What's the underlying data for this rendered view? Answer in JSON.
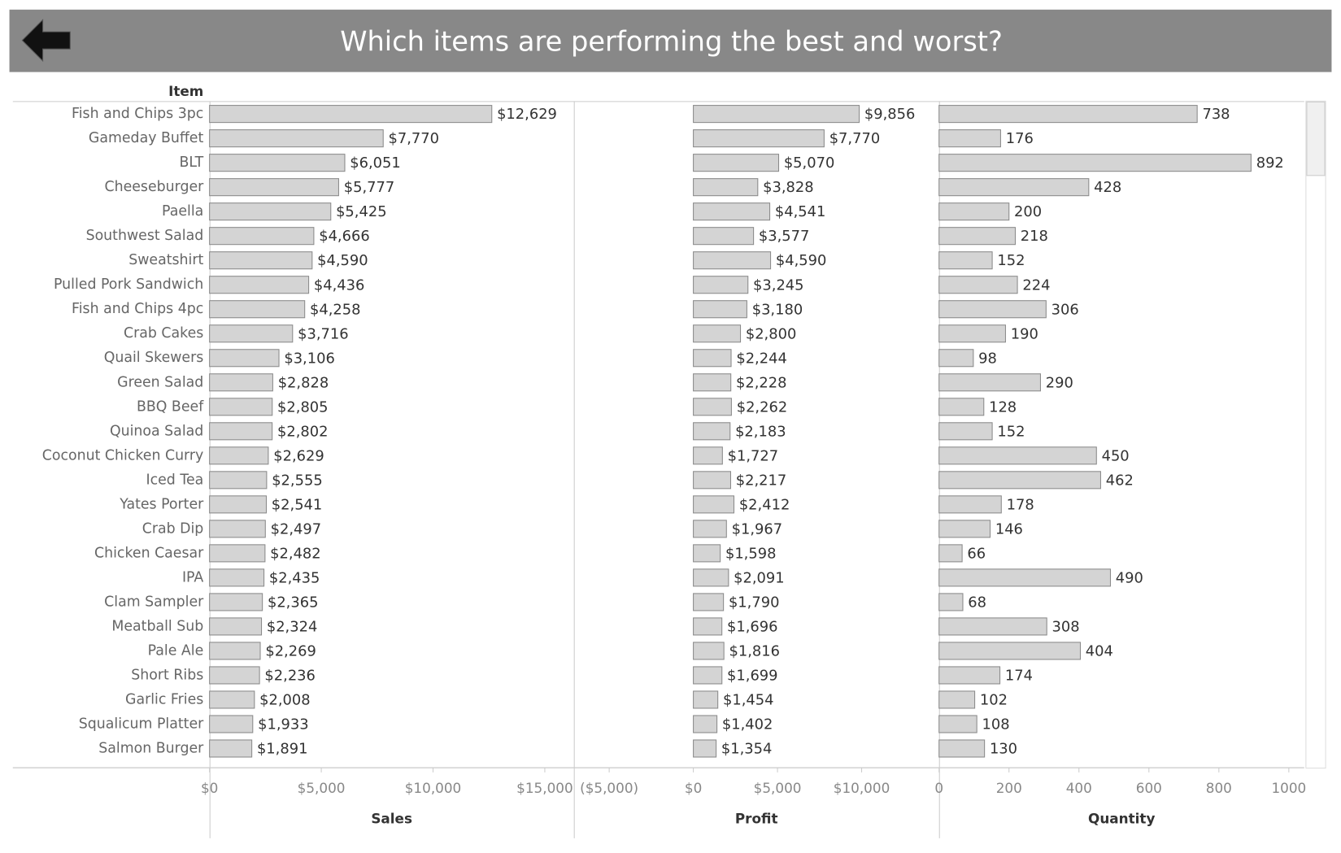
{
  "chart_data": {
    "type": "bar",
    "title": "Which items are performing the best and worst?",
    "y_label": "Item",
    "categories": [
      "Fish and Chips 3pc",
      "Gameday Buffet",
      "BLT",
      "Cheeseburger",
      "Paella",
      "Southwest Salad",
      "Sweatshirt",
      "Pulled Pork Sandwich",
      "Fish and Chips 4pc",
      "Crab Cakes",
      "Quail Skewers",
      "Green Salad",
      "BBQ Beef",
      "Quinoa Salad",
      "Coconut Chicken Curry",
      "Iced Tea",
      "Yates Porter",
      "Crab Dip",
      "Chicken Caesar",
      "IPA",
      "Clam Sampler",
      "Meatball Sub",
      "Pale Ale",
      "Short Ribs",
      "Garlic Fries",
      "Squalicum Platter",
      "Salmon Burger"
    ],
    "series": [
      {
        "name": "Sales",
        "color": "#d4d4d4",
        "values": [
          12629,
          7770,
          6051,
          5777,
          5425,
          4666,
          4590,
          4436,
          4258,
          3716,
          3106,
          2828,
          2805,
          2802,
          2629,
          2555,
          2541,
          2497,
          2482,
          2435,
          2365,
          2324,
          2269,
          2236,
          2008,
          1933,
          1891
        ],
        "value_labels": [
          "$12,629",
          "$7,770",
          "$6,051",
          "$5,777",
          "$5,425",
          "$4,666",
          "$4,590",
          "$4,436",
          "$4,258",
          "$3,716",
          "$3,106",
          "$2,828",
          "$2,805",
          "$2,802",
          "$2,629",
          "$2,555",
          "$2,541",
          "$2,497",
          "$2,482",
          "$2,435",
          "$2,365",
          "$2,324",
          "$2,269",
          "$2,236",
          "$2,008",
          "$1,933",
          "$1,891"
        ],
        "xlim": [
          0,
          16300
        ],
        "xticks": [
          {
            "value": 0,
            "label": "$0"
          },
          {
            "value": 5000,
            "label": "$5,000"
          },
          {
            "value": 10000,
            "label": "$10,000"
          },
          {
            "value": 15000,
            "label": "$15,000"
          }
        ]
      },
      {
        "name": "Profit",
        "color": "#d4d4d4",
        "values": [
          9856,
          7770,
          5070,
          3828,
          4541,
          3577,
          4590,
          3245,
          3180,
          2800,
          2244,
          2228,
          2262,
          2183,
          1727,
          2217,
          2412,
          1967,
          1598,
          2091,
          1790,
          1696,
          1816,
          1699,
          1454,
          1402,
          1354
        ],
        "value_labels": [
          "$9,856",
          "$7,770",
          "$5,070",
          "$3,828",
          "$4,541",
          "$3,577",
          "$4,590",
          "$3,245",
          "$3,180",
          "$2,800",
          "$2,244",
          "$2,228",
          "$2,262",
          "$2,183",
          "$1,727",
          "$2,217",
          "$2,412",
          "$1,967",
          "$1,598",
          "$2,091",
          "$1,790",
          "$1,696",
          "$1,816",
          "$1,699",
          "$1,454",
          "$1,402",
          "$1,354"
        ],
        "xlim": [
          -7100,
          14600
        ],
        "xticks": [
          {
            "value": -5000,
            "label": "($5,000)"
          },
          {
            "value": 0,
            "label": "$0"
          },
          {
            "value": 5000,
            "label": "$5,000"
          },
          {
            "value": 10000,
            "label": "$10,000"
          }
        ]
      },
      {
        "name": "Quantity",
        "color": "#d4d4d4",
        "values": [
          738,
          176,
          892,
          428,
          200,
          218,
          152,
          224,
          306,
          190,
          98,
          290,
          128,
          152,
          450,
          462,
          178,
          146,
          66,
          490,
          68,
          308,
          404,
          174,
          102,
          108,
          130
        ],
        "xlim": [
          0,
          1044
        ],
        "xticks": [
          0,
          200,
          400,
          600,
          800,
          1000
        ]
      }
    ]
  }
}
